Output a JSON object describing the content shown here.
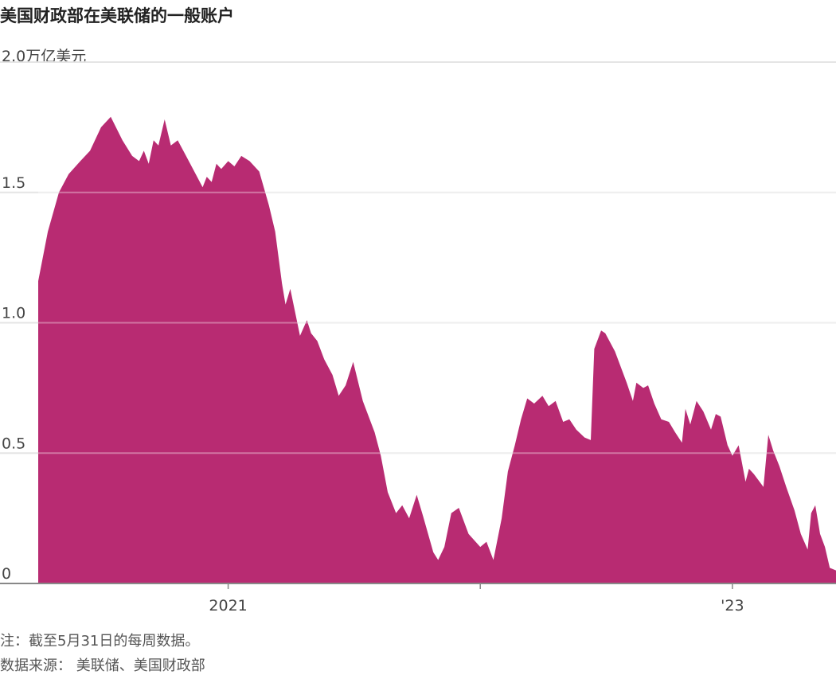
{
  "title": "美国财政部在美联储的一般账户",
  "unit_label": "2.0万亿美元",
  "notes": {
    "note": "注：截至5月31日的每周数据。",
    "source": "数据来源： 美联储、美国财政部"
  },
  "colors": {
    "area": "#B82B72",
    "grid": "#E5E5E5",
    "baseline": "#888888"
  },
  "chart_data": {
    "type": "area",
    "ylim": [
      0,
      2.0
    ],
    "xlim": [
      "2020-04-01",
      "2023-05-31"
    ],
    "grid": true,
    "y_ticks": [
      {
        "value": 0,
        "label": "0"
      },
      {
        "value": 0.5,
        "label": "0.5"
      },
      {
        "value": 1.0,
        "label": "1.0"
      },
      {
        "value": 1.5,
        "label": "1.5"
      }
    ],
    "x_ticks": [
      {
        "value": "2021-01-01",
        "label": "2021"
      },
      {
        "value": "2022-01-01",
        "label": ""
      },
      {
        "value": "2023-01-01",
        "label": "'23"
      }
    ],
    "series": [
      {
        "points": [
          [
            "2020-04-01",
            1.16
          ],
          [
            "2020-04-15",
            1.35
          ],
          [
            "2020-05-01",
            1.5
          ],
          [
            "2020-05-15",
            1.57
          ],
          [
            "2020-06-01",
            1.62
          ],
          [
            "2020-06-15",
            1.66
          ],
          [
            "2020-07-01",
            1.75
          ],
          [
            "2020-07-15",
            1.79
          ],
          [
            "2020-08-01",
            1.7
          ],
          [
            "2020-08-15",
            1.64
          ],
          [
            "2020-08-25",
            1.62
          ],
          [
            "2020-09-01",
            1.66
          ],
          [
            "2020-09-08",
            1.61
          ],
          [
            "2020-09-15",
            1.7
          ],
          [
            "2020-09-22",
            1.68
          ],
          [
            "2020-10-01",
            1.78
          ],
          [
            "2020-10-10",
            1.68
          ],
          [
            "2020-10-20",
            1.7
          ],
          [
            "2020-11-01",
            1.64
          ],
          [
            "2020-11-15",
            1.57
          ],
          [
            "2020-11-25",
            1.52
          ],
          [
            "2020-12-01",
            1.56
          ],
          [
            "2020-12-08",
            1.54
          ],
          [
            "2020-12-15",
            1.61
          ],
          [
            "2020-12-22",
            1.59
          ],
          [
            "2021-01-01",
            1.62
          ],
          [
            "2021-01-10",
            1.6
          ],
          [
            "2021-01-20",
            1.64
          ],
          [
            "2021-02-01",
            1.62
          ],
          [
            "2021-02-15",
            1.58
          ],
          [
            "2021-03-01",
            1.45
          ],
          [
            "2021-03-10",
            1.35
          ],
          [
            "2021-03-20",
            1.15
          ],
          [
            "2021-03-25",
            1.07
          ],
          [
            "2021-04-01",
            1.13
          ],
          [
            "2021-04-15",
            0.95
          ],
          [
            "2021-04-25",
            1.01
          ],
          [
            "2021-05-01",
            0.96
          ],
          [
            "2021-05-10",
            0.93
          ],
          [
            "2021-05-20",
            0.86
          ],
          [
            "2021-06-01",
            0.8
          ],
          [
            "2021-06-10",
            0.72
          ],
          [
            "2021-06-20",
            0.76
          ],
          [
            "2021-07-01",
            0.85
          ],
          [
            "2021-07-15",
            0.7
          ],
          [
            "2021-08-01",
            0.58
          ],
          [
            "2021-08-10",
            0.49
          ],
          [
            "2021-08-20",
            0.35
          ],
          [
            "2021-09-01",
            0.27
          ],
          [
            "2021-09-10",
            0.3
          ],
          [
            "2021-09-20",
            0.25
          ],
          [
            "2021-10-01",
            0.34
          ],
          [
            "2021-10-10",
            0.26
          ],
          [
            "2021-10-25",
            0.12
          ],
          [
            "2021-11-01",
            0.09
          ],
          [
            "2021-11-10",
            0.14
          ],
          [
            "2021-11-20",
            0.27
          ],
          [
            "2021-12-01",
            0.29
          ],
          [
            "2021-12-15",
            0.19
          ],
          [
            "2022-01-01",
            0.14
          ],
          [
            "2022-01-10",
            0.16
          ],
          [
            "2022-01-20",
            0.09
          ],
          [
            "2022-02-01",
            0.25
          ],
          [
            "2022-02-10",
            0.43
          ],
          [
            "2022-02-20",
            0.53
          ],
          [
            "2022-03-01",
            0.63
          ],
          [
            "2022-03-10",
            0.71
          ],
          [
            "2022-03-20",
            0.69
          ],
          [
            "2022-04-01",
            0.72
          ],
          [
            "2022-04-10",
            0.68
          ],
          [
            "2022-04-20",
            0.7
          ],
          [
            "2022-05-01",
            0.62
          ],
          [
            "2022-05-10",
            0.63
          ],
          [
            "2022-05-20",
            0.59
          ],
          [
            "2022-06-01",
            0.56
          ],
          [
            "2022-06-10",
            0.55
          ],
          [
            "2022-06-15",
            0.9
          ],
          [
            "2022-06-25",
            0.97
          ],
          [
            "2022-07-01",
            0.96
          ],
          [
            "2022-07-15",
            0.89
          ],
          [
            "2022-08-01",
            0.77
          ],
          [
            "2022-08-10",
            0.7
          ],
          [
            "2022-08-15",
            0.77
          ],
          [
            "2022-08-25",
            0.75
          ],
          [
            "2022-09-01",
            0.76
          ],
          [
            "2022-09-10",
            0.69
          ],
          [
            "2022-09-20",
            0.63
          ],
          [
            "2022-10-01",
            0.62
          ],
          [
            "2022-10-10",
            0.58
          ],
          [
            "2022-10-20",
            0.54
          ],
          [
            "2022-10-25",
            0.67
          ],
          [
            "2022-11-01",
            0.61
          ],
          [
            "2022-11-10",
            0.7
          ],
          [
            "2022-11-20",
            0.66
          ],
          [
            "2022-12-01",
            0.59
          ],
          [
            "2022-12-08",
            0.65
          ],
          [
            "2022-12-15",
            0.64
          ],
          [
            "2022-12-25",
            0.53
          ],
          [
            "2023-01-01",
            0.49
          ],
          [
            "2023-01-10",
            0.53
          ],
          [
            "2023-01-20",
            0.39
          ],
          [
            "2023-01-25",
            0.44
          ],
          [
            "2023-02-01",
            0.42
          ],
          [
            "2023-02-15",
            0.37
          ],
          [
            "2023-02-22",
            0.57
          ],
          [
            "2023-03-01",
            0.51
          ],
          [
            "2023-03-10",
            0.45
          ],
          [
            "2023-03-20",
            0.37
          ],
          [
            "2023-04-01",
            0.28
          ],
          [
            "2023-04-10",
            0.19
          ],
          [
            "2023-04-20",
            0.13
          ],
          [
            "2023-04-25",
            0.27
          ],
          [
            "2023-05-01",
            0.3
          ],
          [
            "2023-05-08",
            0.19
          ],
          [
            "2023-05-15",
            0.14
          ],
          [
            "2023-05-22",
            0.06
          ],
          [
            "2023-05-31",
            0.05
          ]
        ]
      }
    ]
  }
}
